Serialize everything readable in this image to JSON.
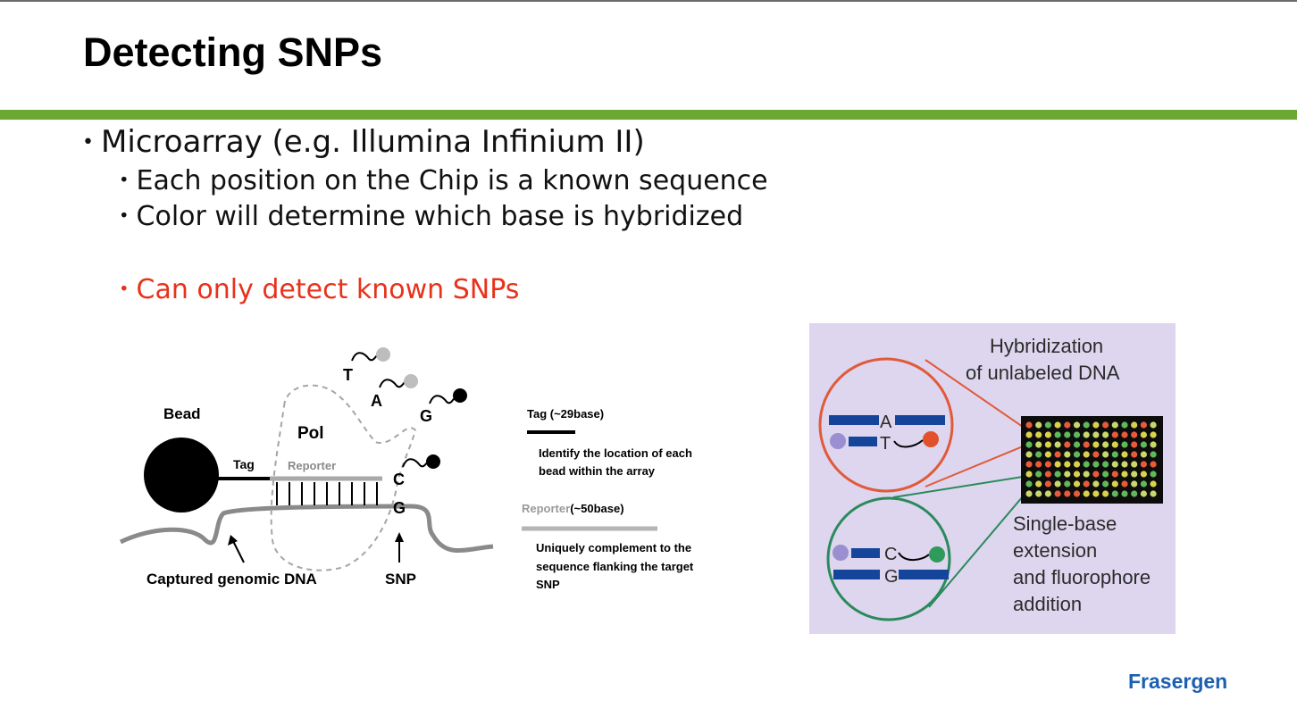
{
  "slide": {
    "title": "Detecting SNPs",
    "bullets": [
      "Microarray (e.g. Illumina Infinium II)",
      "Each position on the Chip is a known sequence",
      "Color will determine which base is hybridized",
      "Can only detect known SNPs"
    ],
    "logo": "Frasergen"
  },
  "left_diagram": {
    "bead": "Bead",
    "tag": "Tag",
    "pol": "Pol",
    "reporter": "Reporter",
    "base_t": "T",
    "base_a": "A",
    "base_g_top": "G",
    "base_c": "C",
    "base_g": "G",
    "captured_dna": "Captured genomic DNA",
    "snp": "SNP"
  },
  "legend": {
    "tag_title": "Tag (~29base)",
    "tag_desc_1": "Identify the location of each",
    "tag_desc_2": "bead within the array",
    "reporter_word": "Reporter",
    "reporter_size": "(~50base)",
    "reporter_desc_1": "Uniquely complement to the",
    "reporter_desc_2": "sequence flanking the target",
    "reporter_desc_3": "SNP"
  },
  "right_panel": {
    "hyb_line1": "Hybridization",
    "hyb_line2": "of unlabeled DNA",
    "top_a": "A",
    "top_t": "T",
    "bot_c": "C",
    "bot_g": "G",
    "ext_line1": "Single-base",
    "ext_line2": "extension",
    "ext_line3": "and fluorophore",
    "ext_line4": "addition",
    "colors": {
      "background": "#ddd6ee",
      "red_circle": "#e05a3a",
      "green_circle": "#2a8a5c",
      "probe_blue": "#14459a"
    }
  }
}
